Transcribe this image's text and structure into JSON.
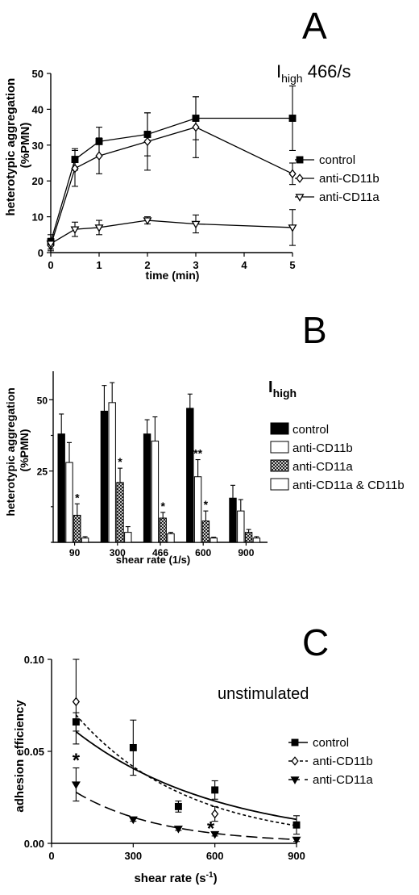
{
  "panels": [
    {
      "letter": "A",
      "chart_data": {
        "type": "line",
        "title_main": "I",
        "title_sub": "high",
        "title_rest": " 466/s",
        "xlabel": "time (min)",
        "ylabel": [
          "heterotypic aggregation",
          "(%PMN)"
        ],
        "xlim": [
          0,
          5
        ],
        "ylim": [
          0,
          50
        ],
        "xticks": [
          0,
          1,
          2,
          3,
          4,
          5
        ],
        "yticks": [
          0,
          10,
          20,
          30,
          40,
          50
        ],
        "series": [
          {
            "name": "control",
            "marker": "square-filled",
            "x": [
              0,
              0.5,
              1,
              2,
              3,
              5
            ],
            "y": [
              3,
              26,
              31,
              33,
              37.5,
              37.5
            ],
            "err": [
              2,
              3,
              4,
              6,
              6,
              9
            ]
          },
          {
            "name": "anti-CD11b",
            "marker": "diamond-open",
            "x": [
              0,
              0.5,
              1,
              2,
              3,
              5
            ],
            "y": [
              2,
              23.5,
              27,
              31,
              35,
              22
            ],
            "err": [
              1.5,
              5,
              5,
              8,
              8.5,
              3
            ]
          },
          {
            "name": "anti-CD11a",
            "marker": "triangle-down-open",
            "x": [
              0,
              0.5,
              1,
              2,
              3,
              5
            ],
            "y": [
              2.5,
              6.5,
              7,
              9,
              8,
              7
            ],
            "err": [
              1.5,
              2,
              2,
              1,
              2.5,
              5
            ]
          }
        ]
      }
    },
    {
      "letter": "B",
      "chart_data": {
        "type": "bar",
        "title_main": "I",
        "title_sub": "high",
        "xlabel": "shear rate (1/s)",
        "ylabel": [
          "heterotypic aggregation",
          "(%PMN)"
        ],
        "ylim": [
          0,
          60
        ],
        "yticks": [
          25,
          50
        ],
        "categories": [
          "90",
          "300",
          "466",
          "600",
          "900"
        ],
        "series": [
          {
            "name": "control",
            "fill": "solid",
            "values": [
              38,
              46,
              38,
              47,
              15.5
            ],
            "err": [
              7,
              9,
              5,
              5,
              4.5
            ]
          },
          {
            "name": "anti-CD11b",
            "fill": "open",
            "values": [
              28,
              49,
              35.5,
              23,
              11
            ],
            "err": [
              7,
              7,
              8.5,
              6,
              4
            ]
          },
          {
            "name": "anti-CD11a",
            "fill": "hatch",
            "values": [
              9.5,
              21,
              8.5,
              7.5,
              3.5
            ],
            "err": [
              4,
              5,
              2,
              3.5,
              1
            ]
          },
          {
            "name": "anti-CD11a & CD11b",
            "fill": "open",
            "values": [
              1.5,
              3.5,
              3,
              1.5,
              1.5
            ],
            "err": [
              0.5,
              2,
              0.5,
              0.3,
              0.5
            ]
          }
        ],
        "annotations": [
          {
            "category": "90",
            "series": 2,
            "text": "*"
          },
          {
            "category": "300",
            "series": 2,
            "text": "*"
          },
          {
            "category": "466",
            "series": 2,
            "text": "*"
          },
          {
            "category": "600",
            "series": 1,
            "text": "**"
          },
          {
            "category": "600",
            "series": 2,
            "text": "*"
          }
        ]
      }
    },
    {
      "letter": "C",
      "chart_data": {
        "type": "scatter",
        "title": "unstimulated",
        "xlabel_main": "shear rate (s",
        "xlabel_sup": "-1",
        "xlabel_end": ")",
        "ylabel": "adhesion efficiency",
        "xlim": [
          0,
          900
        ],
        "ylim": [
          0,
          0.1
        ],
        "xticks": [
          0,
          300,
          600,
          900
        ],
        "yticks": [
          0.0,
          0.05,
          0.1
        ],
        "ytick_labels": [
          "0.00",
          "0.05",
          "0.10"
        ],
        "series": [
          {
            "name": "control",
            "marker": "square-filled",
            "line": "solid",
            "x": [
              90,
              300,
              466,
              600,
              900
            ],
            "y": [
              0.066,
              0.052,
              0.02,
              0.029,
              0.01
            ],
            "err": [
              0.005,
              0.015,
              0.003,
              0.005,
              0.005
            ],
            "fit": [
              0.072,
              0.0019
            ]
          },
          {
            "name": "anti-CD11b",
            "marker": "diamond-open",
            "line": "short-dash",
            "x": [
              90,
              600
            ],
            "y": [
              0.077,
              0.016
            ],
            "err": [
              0.023,
              0.004
            ],
            "fit": [
              0.087,
              0.00245
            ]
          },
          {
            "name": "anti-CD11a",
            "marker": "triangle-down-filled",
            "line": "long-dash",
            "x": [
              90,
              300,
              466,
              600,
              900
            ],
            "y": [
              0.032,
              0.013,
              0.008,
              0.005,
              0.002
            ],
            "err": [
              0.009,
              0.001,
              0.001,
              0.001,
              0.001
            ],
            "fit": [
              0.037,
              0.0032
            ]
          }
        ],
        "annotations": [
          {
            "x": 90,
            "y": 0.046,
            "text": "*"
          },
          {
            "x": 585,
            "y": 0.009,
            "text": "*"
          }
        ]
      }
    }
  ]
}
